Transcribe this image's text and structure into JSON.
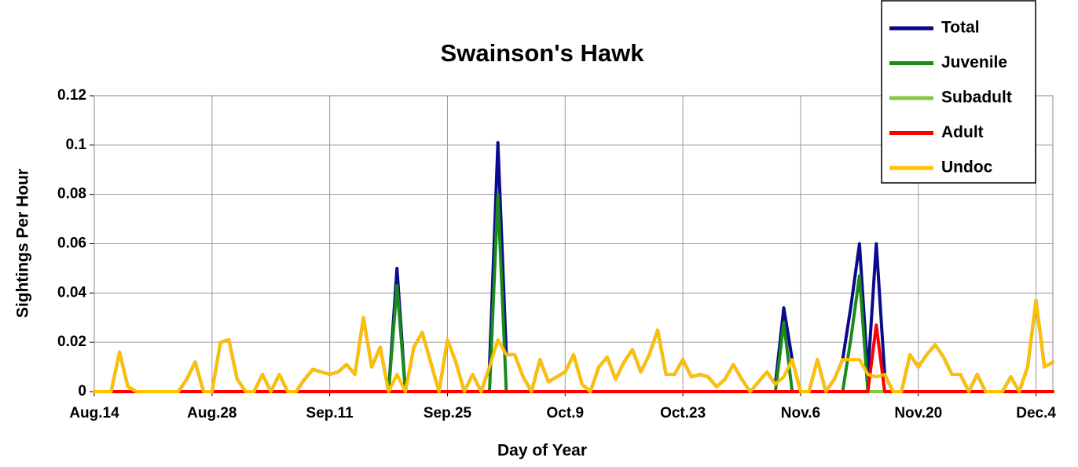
{
  "chart_data": {
    "type": "line",
    "title": "Swainson's Hawk",
    "x_label": "Day of Year",
    "y_label": "Sightings Per Hour",
    "x": [
      0,
      1,
      2,
      3,
      4,
      5,
      6,
      7,
      8,
      9,
      10,
      11,
      12,
      13,
      14,
      15,
      16,
      17,
      18,
      19,
      20,
      21,
      22,
      23,
      24,
      25,
      26,
      27,
      28,
      29,
      30,
      31,
      32,
      33,
      34,
      35,
      36,
      37,
      38,
      39,
      40,
      41,
      42,
      43,
      44,
      45,
      46,
      47,
      48,
      49,
      50,
      51,
      52,
      53,
      54,
      55,
      56,
      57,
      58,
      59,
      60,
      61,
      62,
      63,
      64,
      65,
      66,
      67,
      68,
      69,
      70,
      71,
      72,
      73,
      74,
      75,
      76,
      77,
      78,
      79,
      80,
      81,
      82,
      83,
      84,
      85,
      86,
      87,
      88,
      89,
      90,
      91,
      92,
      93,
      94,
      95,
      96,
      97,
      98,
      99,
      100,
      101,
      102,
      103,
      104,
      105,
      106,
      107,
      108,
      109,
      110,
      111,
      112,
      113,
      114
    ],
    "xlim": [
      0,
      114
    ],
    "xticks": [
      {
        "value": 0,
        "label": "Aug.14"
      },
      {
        "value": 14,
        "label": "Aug.28"
      },
      {
        "value": 28,
        "label": "Sep.11"
      },
      {
        "value": 42,
        "label": "Sep.25"
      },
      {
        "value": 56,
        "label": "Oct.9"
      },
      {
        "value": 70,
        "label": "Oct.23"
      },
      {
        "value": 84,
        "label": "Nov.6"
      },
      {
        "value": 98,
        "label": "Nov.20"
      },
      {
        "value": 112,
        "label": "Dec.4"
      }
    ],
    "ylim": [
      0,
      0.12
    ],
    "yticks": [
      0,
      0.02,
      0.04,
      0.06,
      0.08,
      0.1,
      0.12
    ],
    "grid": true,
    "legend_position": "top-right",
    "series": [
      {
        "name": "Total",
        "color": "#0a0a8c",
        "values": [
          0,
          0,
          0,
          0.016,
          0.002,
          0,
          0,
          0,
          0,
          0,
          0,
          0.005,
          0.012,
          0,
          0,
          0.02,
          0.021,
          0.005,
          0,
          0,
          0.007,
          0,
          0.007,
          0,
          0,
          0.005,
          0.009,
          0.008,
          0.007,
          0.008,
          0.011,
          0.007,
          0.03,
          0.01,
          0.018,
          0,
          0.05,
          0,
          0.018,
          0.024,
          0.012,
          0,
          0.021,
          0.012,
          0,
          0.007,
          0,
          0.01,
          0.101,
          0.015,
          0.015,
          0.006,
          0,
          0.013,
          0.004,
          0.006,
          0.008,
          0.015,
          0.003,
          0,
          0.01,
          0.014,
          0.005,
          0.012,
          0.017,
          0.008,
          0.015,
          0.025,
          0.007,
          0.007,
          0.013,
          0.006,
          0.007,
          0.006,
          0.002,
          0.005,
          0.011,
          0.005,
          0,
          0.004,
          0.008,
          0.003,
          0.034,
          0.013,
          0,
          0,
          0.013,
          0,
          0.005,
          0.013,
          0.035,
          0.06,
          0.007,
          0.06,
          0.007,
          0,
          0,
          0.015,
          0.01,
          0.015,
          0.019,
          0.014,
          0.007,
          0.007,
          0,
          0.007,
          0,
          0,
          0,
          0.006,
          0,
          0.01,
          0.037,
          0.01,
          0.012
        ]
      },
      {
        "name": "Juvenile",
        "color": "#1a8a1a",
        "values": [
          0,
          0,
          0,
          0,
          0,
          0,
          0,
          0,
          0,
          0,
          0,
          0,
          0,
          0,
          0,
          0,
          0,
          0,
          0,
          0,
          0,
          0,
          0,
          0,
          0,
          0,
          0,
          0,
          0,
          0,
          0,
          0,
          0,
          0,
          0,
          0,
          0.043,
          0,
          0,
          0,
          0,
          0,
          0,
          0,
          0,
          0,
          0,
          0,
          0.08,
          0,
          0,
          0,
          0,
          0,
          0,
          0,
          0,
          0,
          0,
          0,
          0,
          0,
          0,
          0,
          0,
          0,
          0,
          0,
          0,
          0,
          0,
          0,
          0,
          0,
          0,
          0,
          0,
          0,
          0,
          0,
          0,
          0,
          0.028,
          0,
          0,
          0,
          0,
          0,
          0,
          0,
          0.022,
          0.047,
          0,
          0,
          0,
          0,
          0,
          0,
          0,
          0,
          0,
          0,
          0,
          0,
          0,
          0,
          0,
          0,
          0,
          0,
          0,
          0,
          0,
          0,
          0
        ]
      },
      {
        "name": "Subadult",
        "color": "#8cc63f",
        "values": [
          0,
          0,
          0,
          0,
          0,
          0,
          0,
          0,
          0,
          0,
          0,
          0,
          0,
          0,
          0,
          0,
          0,
          0,
          0,
          0,
          0,
          0,
          0,
          0,
          0,
          0,
          0,
          0,
          0,
          0,
          0,
          0,
          0,
          0,
          0,
          0,
          0,
          0,
          0,
          0,
          0,
          0,
          0,
          0,
          0,
          0,
          0,
          0,
          0,
          0,
          0,
          0,
          0,
          0,
          0,
          0,
          0,
          0,
          0,
          0,
          0,
          0,
          0,
          0,
          0,
          0,
          0,
          0,
          0,
          0,
          0,
          0,
          0,
          0,
          0,
          0,
          0,
          0,
          0,
          0,
          0,
          0,
          0,
          0,
          0,
          0,
          0,
          0,
          0,
          0,
          0,
          0,
          0,
          0,
          0,
          0,
          0,
          0,
          0,
          0,
          0,
          0,
          0,
          0,
          0,
          0,
          0,
          0,
          0,
          0,
          0,
          0,
          0,
          0,
          0
        ]
      },
      {
        "name": "Adult",
        "color": "#ff0000",
        "values": [
          0,
          0,
          0,
          0,
          0,
          0,
          0,
          0,
          0,
          0,
          0,
          0,
          0,
          0,
          0,
          0,
          0,
          0,
          0,
          0,
          0,
          0,
          0,
          0,
          0,
          0,
          0,
          0,
          0,
          0,
          0,
          0,
          0,
          0,
          0,
          0,
          0,
          0,
          0,
          0,
          0,
          0,
          0,
          0,
          0,
          0,
          0,
          0,
          0,
          0,
          0,
          0,
          0,
          0,
          0,
          0,
          0,
          0,
          0,
          0,
          0,
          0,
          0,
          0,
          0,
          0,
          0,
          0,
          0,
          0,
          0,
          0,
          0,
          0,
          0,
          0,
          0,
          0,
          0,
          0,
          0,
          0,
          0,
          0,
          0,
          0,
          0,
          0,
          0,
          0,
          0,
          0,
          0,
          0.027,
          0,
          0,
          0,
          0,
          0,
          0,
          0,
          0,
          0,
          0,
          0,
          0,
          0,
          0,
          0,
          0,
          0,
          0,
          0,
          0,
          0
        ]
      },
      {
        "name": "Undoc",
        "color": "#ffc000",
        "values": [
          0,
          0,
          0,
          0.016,
          0.002,
          0,
          0,
          0,
          0,
          0,
          0,
          0.005,
          0.012,
          0,
          0,
          0.02,
          0.021,
          0.005,
          0,
          0,
          0.007,
          0,
          0.007,
          0,
          0,
          0.005,
          0.009,
          0.008,
          0.007,
          0.008,
          0.011,
          0.007,
          0.03,
          0.01,
          0.018,
          0,
          0.007,
          0,
          0.018,
          0.024,
          0.012,
          0,
          0.021,
          0.012,
          0,
          0.007,
          0,
          0.01,
          0.021,
          0.015,
          0.015,
          0.006,
          0,
          0.013,
          0.004,
          0.006,
          0.008,
          0.015,
          0.003,
          0,
          0.01,
          0.014,
          0.005,
          0.012,
          0.017,
          0.008,
          0.015,
          0.025,
          0.007,
          0.007,
          0.013,
          0.006,
          0.007,
          0.006,
          0.002,
          0.005,
          0.011,
          0.005,
          0,
          0.004,
          0.008,
          0.003,
          0.006,
          0.013,
          0,
          0,
          0.013,
          0,
          0.005,
          0.013,
          0.013,
          0.013,
          0.007,
          0.006,
          0.007,
          0,
          0,
          0.015,
          0.01,
          0.015,
          0.019,
          0.014,
          0.007,
          0.007,
          0,
          0.007,
          0,
          0,
          0,
          0.006,
          0,
          0.01,
          0.037,
          0.01,
          0.012
        ]
      }
    ]
  }
}
